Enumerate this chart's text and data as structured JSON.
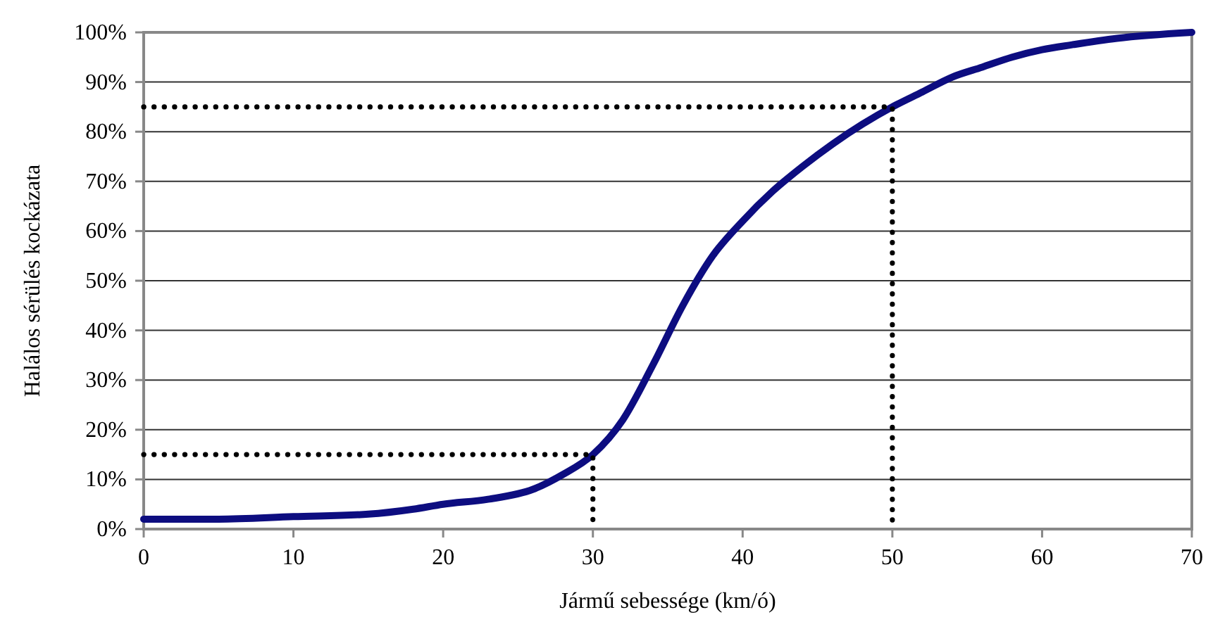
{
  "chart_data": {
    "type": "line",
    "xlabel": "Jármű sebessége (km/ó)",
    "ylabel": "Halálos sérülés kockázata",
    "xlim": [
      0,
      70
    ],
    "ylim": [
      0,
      100
    ],
    "xticks": [
      0,
      10,
      20,
      30,
      40,
      50,
      60,
      70
    ],
    "yticks": [
      {
        "value": 0,
        "label": "0%"
      },
      {
        "value": 10,
        "label": "10%"
      },
      {
        "value": 20,
        "label": "20%"
      },
      {
        "value": 30,
        "label": "30%"
      },
      {
        "value": 40,
        "label": "40%"
      },
      {
        "value": 50,
        "label": "50%"
      },
      {
        "value": 60,
        "label": "60%"
      },
      {
        "value": 70,
        "label": "70%"
      },
      {
        "value": 80,
        "label": "80%"
      },
      {
        "value": 90,
        "label": "90%"
      },
      {
        "value": 100,
        "label": "100%"
      }
    ],
    "grid": "y",
    "marker": "none",
    "series": [
      {
        "color": "#0d0d80",
        "line_style": "solid",
        "x": [
          0,
          5,
          10,
          15,
          18,
          20,
          23,
          26,
          28,
          30,
          32,
          34,
          36,
          38,
          40,
          42,
          44,
          46,
          48,
          50,
          52,
          54,
          56,
          58,
          60,
          62,
          65,
          70
        ],
        "values": [
          2,
          2,
          2.5,
          3,
          4,
          5,
          6,
          8,
          11,
          15,
          22,
          33,
          45,
          55,
          62,
          68,
          73,
          77.5,
          81.5,
          85,
          88,
          91,
          93,
          95,
          96.5,
          97.5,
          98.8,
          100
        ]
      },
      {
        "color": "#000000",
        "line_style": "dotted",
        "x": [
          0,
          30,
          30
        ],
        "values": [
          15,
          15,
          0
        ]
      },
      {
        "color": "#000000",
        "line_style": "dotted",
        "x": [
          0,
          50,
          50
        ],
        "values": [
          85,
          85,
          0
        ]
      }
    ]
  }
}
